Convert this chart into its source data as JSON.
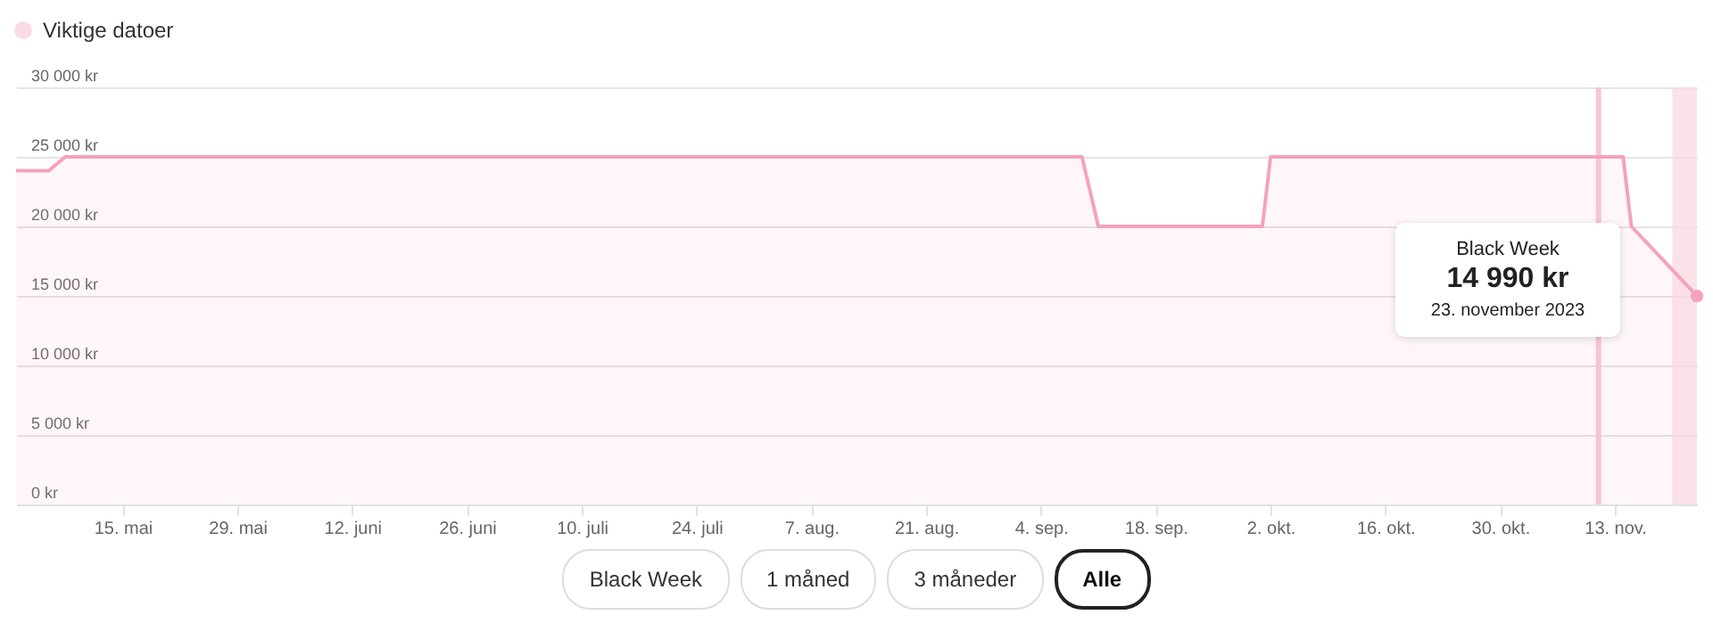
{
  "chart_data": {
    "type": "area",
    "legend": "top left",
    "grid": "y",
    "x": [
      "2023-05-02",
      "2023-05-06",
      "2023-05-08",
      "2023-09-09",
      "2023-09-11",
      "2023-10-01",
      "2023-10-02",
      "2023-11-14",
      "2023-11-15",
      "2023-11-23"
    ],
    "series": [
      {
        "color": "#f4a3b8",
        "values": [
          24000,
          24000,
          25000,
          25000,
          20000,
          20000,
          25000,
          25000,
          20000,
          14990
        ]
      }
    ],
    "xlim": [
      "2023-05-02",
      "2023-11-23"
    ],
    "xticks": [
      {
        "value": "2023-05-15",
        "label": "15. mai"
      },
      {
        "value": "2023-05-29",
        "label": "29. mai"
      },
      {
        "value": "2023-06-12",
        "label": "12. juni"
      },
      {
        "value": "2023-06-26",
        "label": "26. juni"
      },
      {
        "value": "2023-07-10",
        "label": "10. juli"
      },
      {
        "value": "2023-07-24",
        "label": "24. juli"
      },
      {
        "value": "2023-08-07",
        "label": "7. aug."
      },
      {
        "value": "2023-08-21",
        "label": "21. aug."
      },
      {
        "value": "2023-09-04",
        "label": "4. sep."
      },
      {
        "value": "2023-09-18",
        "label": "18. sep."
      },
      {
        "value": "2023-10-02",
        "label": "2. okt."
      },
      {
        "value": "2023-10-16",
        "label": "16. okt."
      },
      {
        "value": "2023-10-30",
        "label": "30. okt."
      },
      {
        "value": "2023-11-13",
        "label": "13. nov."
      }
    ],
    "ylim": [
      0,
      30000
    ],
    "yticks": [
      {
        "value": 0,
        "label": "0 kr"
      },
      {
        "value": 5000,
        "label": "5 000 kr"
      },
      {
        "value": 10000,
        "label": "10 000 kr"
      },
      {
        "value": 15000,
        "label": "15 000 kr"
      },
      {
        "value": 20000,
        "label": "20 000 kr"
      },
      {
        "value": 25000,
        "label": "25 000 kr"
      },
      {
        "value": 30000,
        "label": "30 000 kr"
      }
    ],
    "ref_lines": [
      {
        "axis": "x",
        "value": "2023-11-11",
        "color": "#f7c6d3"
      }
    ],
    "bands": [
      {
        "axis": "x",
        "from": "2023-11-20",
        "to": "2023-11-23",
        "label": "Viktige datoer",
        "color": "#f9dbe3"
      }
    ],
    "annotations": [
      "Black Week",
      "14 990 kr",
      "23. november 2023",
      "Black Week",
      "1 måned",
      "3 måneder",
      "Alle"
    ]
  }
}
